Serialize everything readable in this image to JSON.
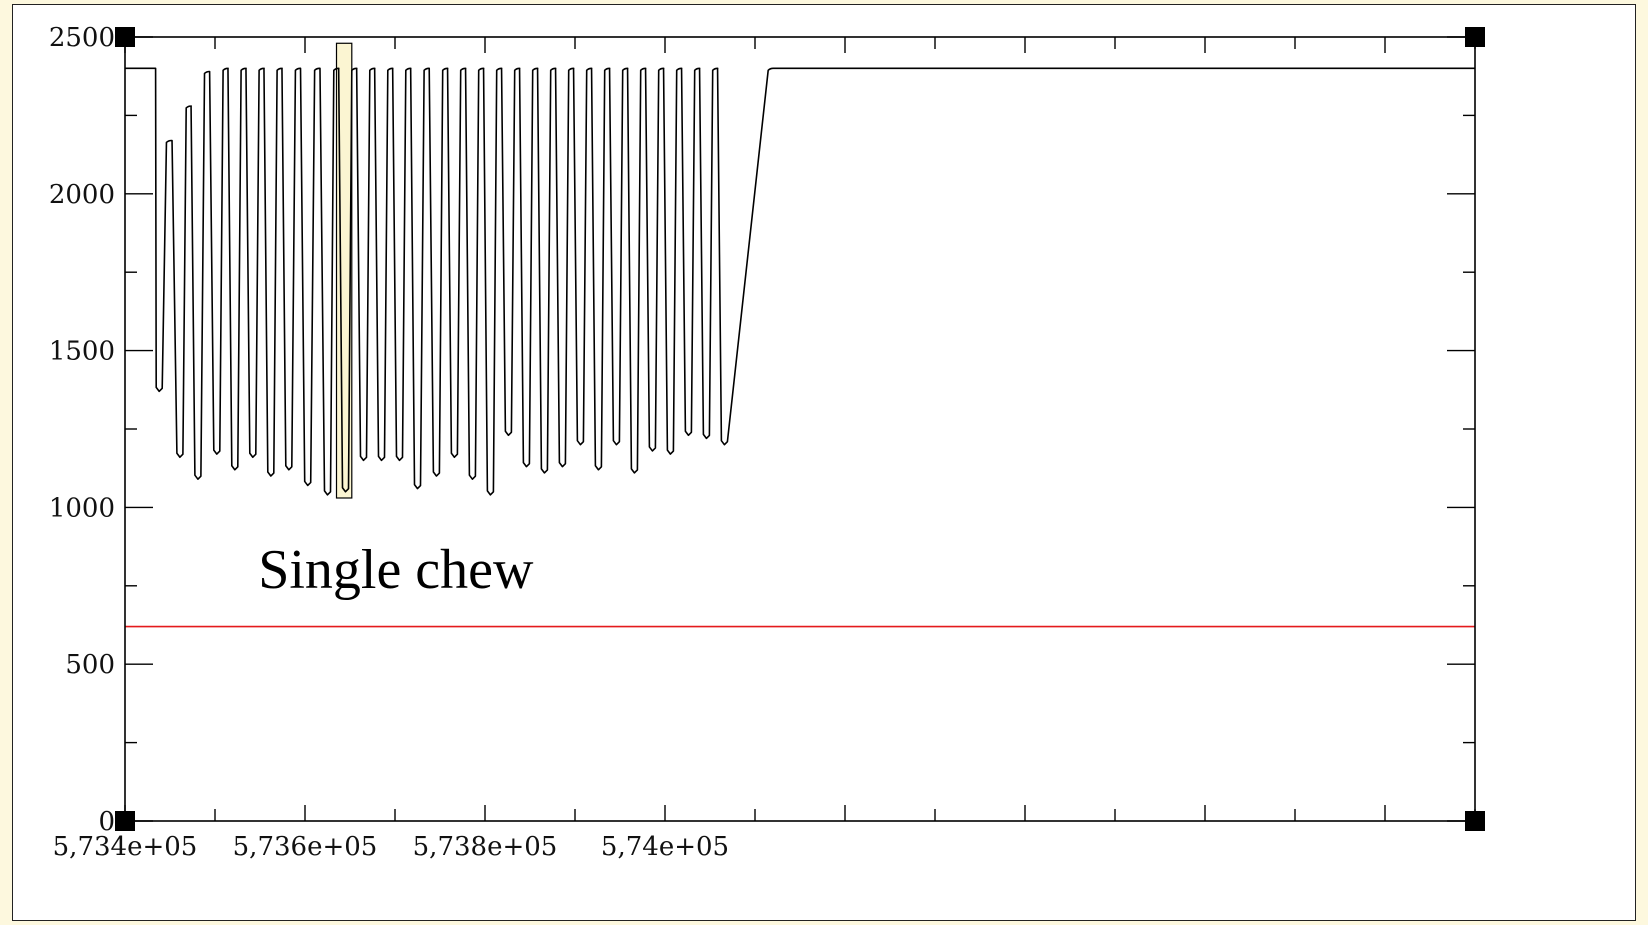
{
  "chart_data": {
    "type": "line",
    "title": "",
    "xlabel": "",
    "ylabel": "",
    "xlim": [
      573400,
      574900
    ],
    "ylim": [
      0,
      2500
    ],
    "grid": false,
    "x_ticks": [
      573400,
      573600,
      573800,
      574000
    ],
    "x_tick_labels": [
      "5,734e+05",
      "5,736e+05",
      "5,738e+05",
      "5,74e+05"
    ],
    "y_ticks": [
      0,
      500,
      1000,
      1500,
      2000,
      2500
    ],
    "y_tick_labels": [
      "0",
      "500",
      "1000",
      "1500",
      "2000",
      "2500"
    ],
    "baseline": 2400,
    "signal_start": 573434,
    "signal_end": 574205,
    "cycles": [
      {
        "trough_x": 573438,
        "trough": 1370,
        "peak": 2170
      },
      {
        "trough_x": 573461,
        "trough": 1160,
        "peak": 2280
      },
      {
        "trough_x": 573481,
        "trough": 1090,
        "peak": 2390
      },
      {
        "trough_x": 573502,
        "trough": 1170,
        "peak": 2400
      },
      {
        "trough_x": 573522,
        "trough": 1120,
        "peak": 2400
      },
      {
        "trough_x": 573542,
        "trough": 1160,
        "peak": 2400
      },
      {
        "trough_x": 573562,
        "trough": 1100,
        "peak": 2400
      },
      {
        "trough_x": 573582,
        "trough": 1120,
        "peak": 2400
      },
      {
        "trough_x": 573603,
        "trough": 1070,
        "peak": 2400
      },
      {
        "trough_x": 573625,
        "trough": 1040,
        "peak": 2400
      },
      {
        "trough_x": 573645,
        "trough": 1050,
        "peak": 2400
      },
      {
        "trough_x": 573665,
        "trough": 1150,
        "peak": 2400
      },
      {
        "trough_x": 573685,
        "trough": 1150,
        "peak": 2400
      },
      {
        "trough_x": 573705,
        "trough": 1150,
        "peak": 2400
      },
      {
        "trough_x": 573725,
        "trough": 1060,
        "peak": 2400
      },
      {
        "trough_x": 573746,
        "trough": 1100,
        "peak": 2400
      },
      {
        "trough_x": 573766,
        "trough": 1160,
        "peak": 2400
      },
      {
        "trough_x": 573786,
        "trough": 1090,
        "peak": 2400
      },
      {
        "trough_x": 573806,
        "trough": 1040,
        "peak": 2400
      },
      {
        "trough_x": 573826,
        "trough": 1230,
        "peak": 2400
      },
      {
        "trough_x": 573846,
        "trough": 1130,
        "peak": 2400
      },
      {
        "trough_x": 573866,
        "trough": 1110,
        "peak": 2400
      },
      {
        "trough_x": 573886,
        "trough": 1130,
        "peak": 2400
      },
      {
        "trough_x": 573906,
        "trough": 1200,
        "peak": 2400
      },
      {
        "trough_x": 573926,
        "trough": 1120,
        "peak": 2400
      },
      {
        "trough_x": 573946,
        "trough": 1200,
        "peak": 2400
      },
      {
        "trough_x": 573966,
        "trough": 1110,
        "peak": 2400
      },
      {
        "trough_x": 573986,
        "trough": 1180,
        "peak": 2400
      },
      {
        "trough_x": 574006,
        "trough": 1170,
        "peak": 2400
      },
      {
        "trough_x": 574026,
        "trough": 1230,
        "peak": 2400
      },
      {
        "trough_x": 574046,
        "trough": 1220,
        "peak": 2400
      },
      {
        "trough_x": 574066,
        "trough": 1200,
        "peak": 2400
      }
    ],
    "threshold": {
      "y": 620,
      "color": "#e41a1c"
    },
    "highlight": {
      "x_from": 573635,
      "x_to": 573652,
      "y_from": 1030,
      "y_to": 2480,
      "color": "#fbf5d2"
    },
    "annotations": [
      {
        "text": "Single chew",
        "x": 573548,
        "y": 800
      }
    ],
    "line_color": "#000000"
  }
}
